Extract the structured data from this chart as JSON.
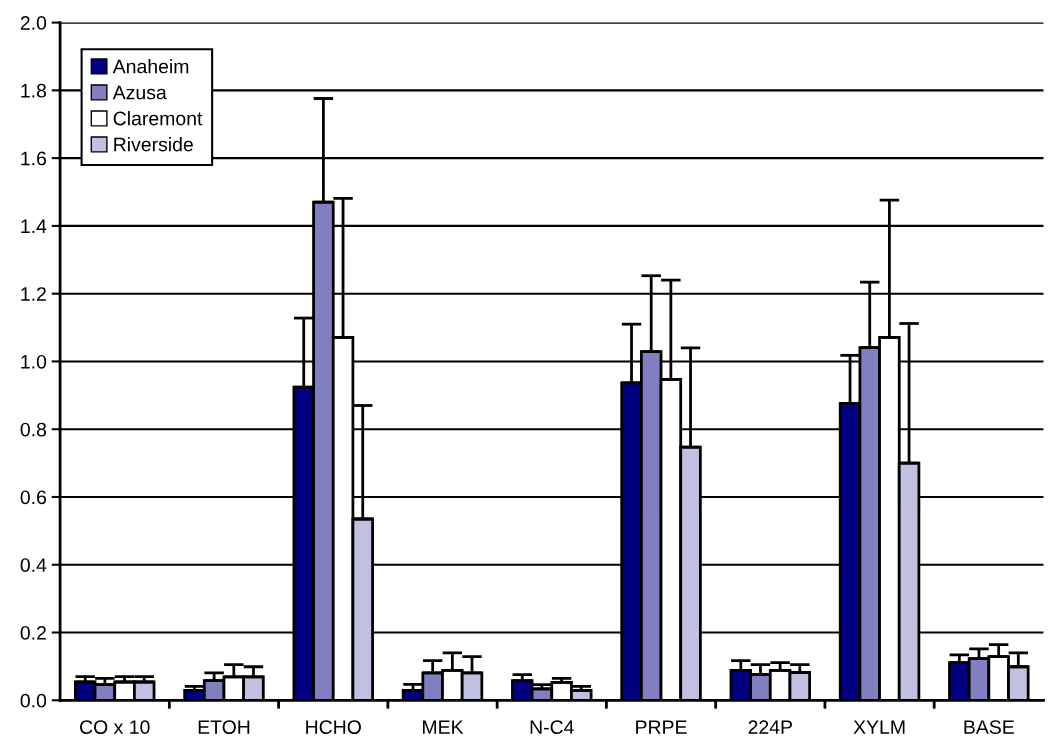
{
  "chart_data": {
    "type": "bar",
    "categories": [
      "CO x 10",
      "ETOH",
      "HCHO",
      "MEK",
      "N-C4",
      "PRPE",
      "224P",
      "XYLM",
      "BASE"
    ],
    "series": [
      {
        "name": "Anaheim",
        "color": "#000080",
        "values": [
          0.054,
          0.029,
          0.924,
          0.029,
          0.058,
          0.937,
          0.088,
          0.876,
          0.111
        ],
        "errors": [
          [
            0.054,
            0.07
          ],
          [
            0.029,
            0.041
          ],
          [
            0.924,
            1.128
          ],
          [
            0.029,
            0.047
          ],
          [
            0.058,
            0.076
          ],
          [
            0.937,
            1.11
          ],
          [
            0.088,
            0.117
          ],
          [
            0.876,
            1.018
          ],
          [
            0.111,
            0.134
          ]
        ]
      },
      {
        "name": "Azusa",
        "color": "#8080c0",
        "values": [
          0.046,
          0.058,
          1.47,
          0.081,
          0.034,
          1.029,
          0.076,
          1.041,
          0.123
        ],
        "errors": [
          [
            0.046,
            0.065
          ],
          [
            0.058,
            0.081
          ],
          [
            1.47,
            1.776
          ],
          [
            0.081,
            0.117
          ],
          [
            0.034,
            0.046
          ],
          [
            1.029,
            1.253
          ],
          [
            0.076,
            0.105
          ],
          [
            1.041,
            1.234
          ],
          [
            0.123,
            0.152
          ]
        ]
      },
      {
        "name": "Claremont",
        "color": "#ffffff",
        "values": [
          0.054,
          0.069,
          1.071,
          0.088,
          0.053,
          0.947,
          0.088,
          1.071,
          0.129
        ],
        "errors": [
          [
            0.054,
            0.07
          ],
          [
            0.069,
            0.105
          ],
          [
            1.071,
            1.481
          ],
          [
            0.088,
            0.14
          ],
          [
            0.053,
            0.065
          ],
          [
            0.947,
            1.24
          ],
          [
            0.088,
            0.111
          ],
          [
            1.071,
            1.476
          ],
          [
            0.129,
            0.164
          ]
        ]
      },
      {
        "name": "Riverside",
        "color": "#c0c0e0",
        "values": [
          0.054,
          0.069,
          0.535,
          0.081,
          0.029,
          0.747,
          0.082,
          0.7,
          0.099
        ],
        "errors": [
          [
            0.054,
            0.07
          ],
          [
            0.069,
            0.099
          ],
          [
            0.535,
            0.87
          ],
          [
            0.081,
            0.129
          ],
          [
            0.029,
            0.041
          ],
          [
            0.747,
            1.04
          ],
          [
            0.082,
            0.105
          ],
          [
            0.7,
            1.112
          ],
          [
            0.099,
            0.14
          ]
        ]
      }
    ],
    "ylim": [
      0,
      2
    ],
    "yticks": [
      {
        "value": 0,
        "label": "0.0"
      },
      {
        "value": 0.2,
        "label": "0.2"
      },
      {
        "value": 0.4,
        "label": "0.4"
      },
      {
        "value": 0.6,
        "label": "0.6"
      },
      {
        "value": 0.8,
        "label": "0.8"
      },
      {
        "value": 1.0,
        "label": "1.0"
      },
      {
        "value": 1.2,
        "label": "1.2"
      },
      {
        "value": 1.4,
        "label": "1.4"
      },
      {
        "value": 1.6,
        "label": "1.6"
      },
      {
        "value": 1.8,
        "label": "1.8"
      },
      {
        "value": 2.0,
        "label": "2.0"
      }
    ],
    "grid": "y",
    "legend": "top left"
  }
}
